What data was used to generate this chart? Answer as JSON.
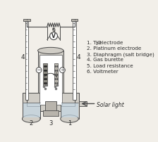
{
  "legend_items": [
    "1. TiO₂ electrode",
    "2. Platinum electrode",
    "3. Diaphragm (salt bridge)",
    "4. Gas burette",
    "5. Load resistance",
    "6. Voltmeter"
  ],
  "solar_light_label": "Solar light",
  "bg_color": "#f2efe9",
  "line_color": "#4a4a4a",
  "text_color": "#2a2a2a",
  "label_fontsize": 5.2,
  "gray_light": "#d0cdc6",
  "gray_mid": "#b8b4ac",
  "gray_dark": "#8a8880",
  "white": "#ffffff",
  "water_color": "#c5d8e5"
}
